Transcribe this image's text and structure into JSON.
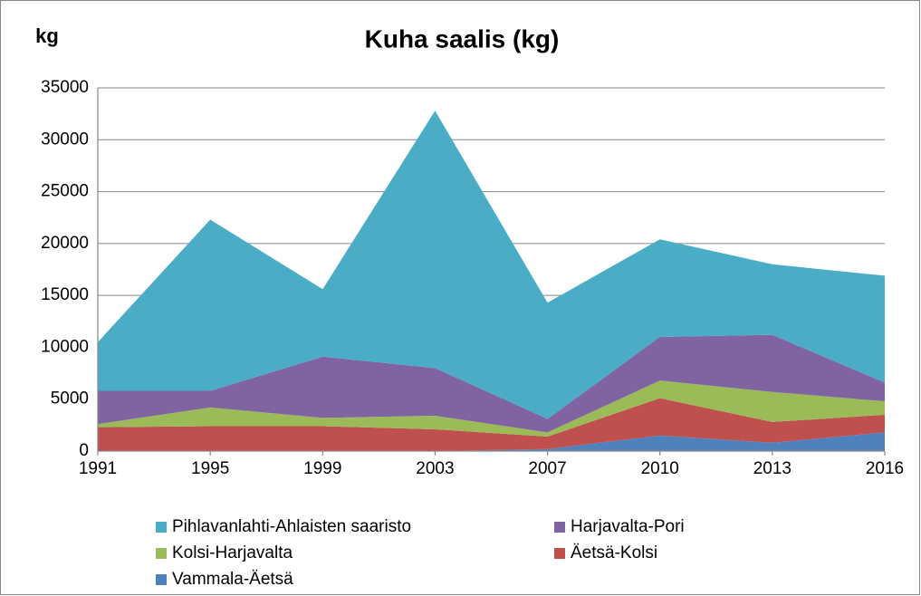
{
  "chart_data": {
    "type": "stacked_area",
    "title": "Kuha saalis (kg)",
    "y_label": "kg",
    "categories": [
      "1991",
      "1995",
      "1999",
      "2003",
      "2007",
      "2010",
      "2013",
      "2016"
    ],
    "series": [
      {
        "name": "Vammala-Äetsä",
        "color": "#4f81bd",
        "values": [
          0,
          0,
          0,
          0,
          200,
          1500,
          800,
          1800
        ]
      },
      {
        "name": "Äetsä-Kolsi",
        "color": "#c0504d",
        "values": [
          2300,
          2400,
          2400,
          2100,
          1200,
          3600,
          2000,
          1700
        ]
      },
      {
        "name": "Kolsi-Harjavalta",
        "color": "#9bbb59",
        "values": [
          300,
          1800,
          800,
          1300,
          400,
          1700,
          2900,
          1300
        ]
      },
      {
        "name": "Harjavalta-Pori",
        "color": "#8064a2",
        "values": [
          3200,
          1600,
          5900,
          4600,
          1300,
          4200,
          5500,
          1800
        ]
      },
      {
        "name": "Pihlavanlahti-Ahlaisten saaristo",
        "color": "#4bacc6",
        "values": [
          4700,
          16500,
          6500,
          24800,
          11200,
          9400,
          6800,
          10300
        ]
      }
    ],
    "ylim": [
      0,
      35000
    ],
    "yticks": [
      0,
      5000,
      10000,
      15000,
      20000,
      25000,
      30000,
      35000
    ],
    "grid": true,
    "legend": "bottom"
  }
}
